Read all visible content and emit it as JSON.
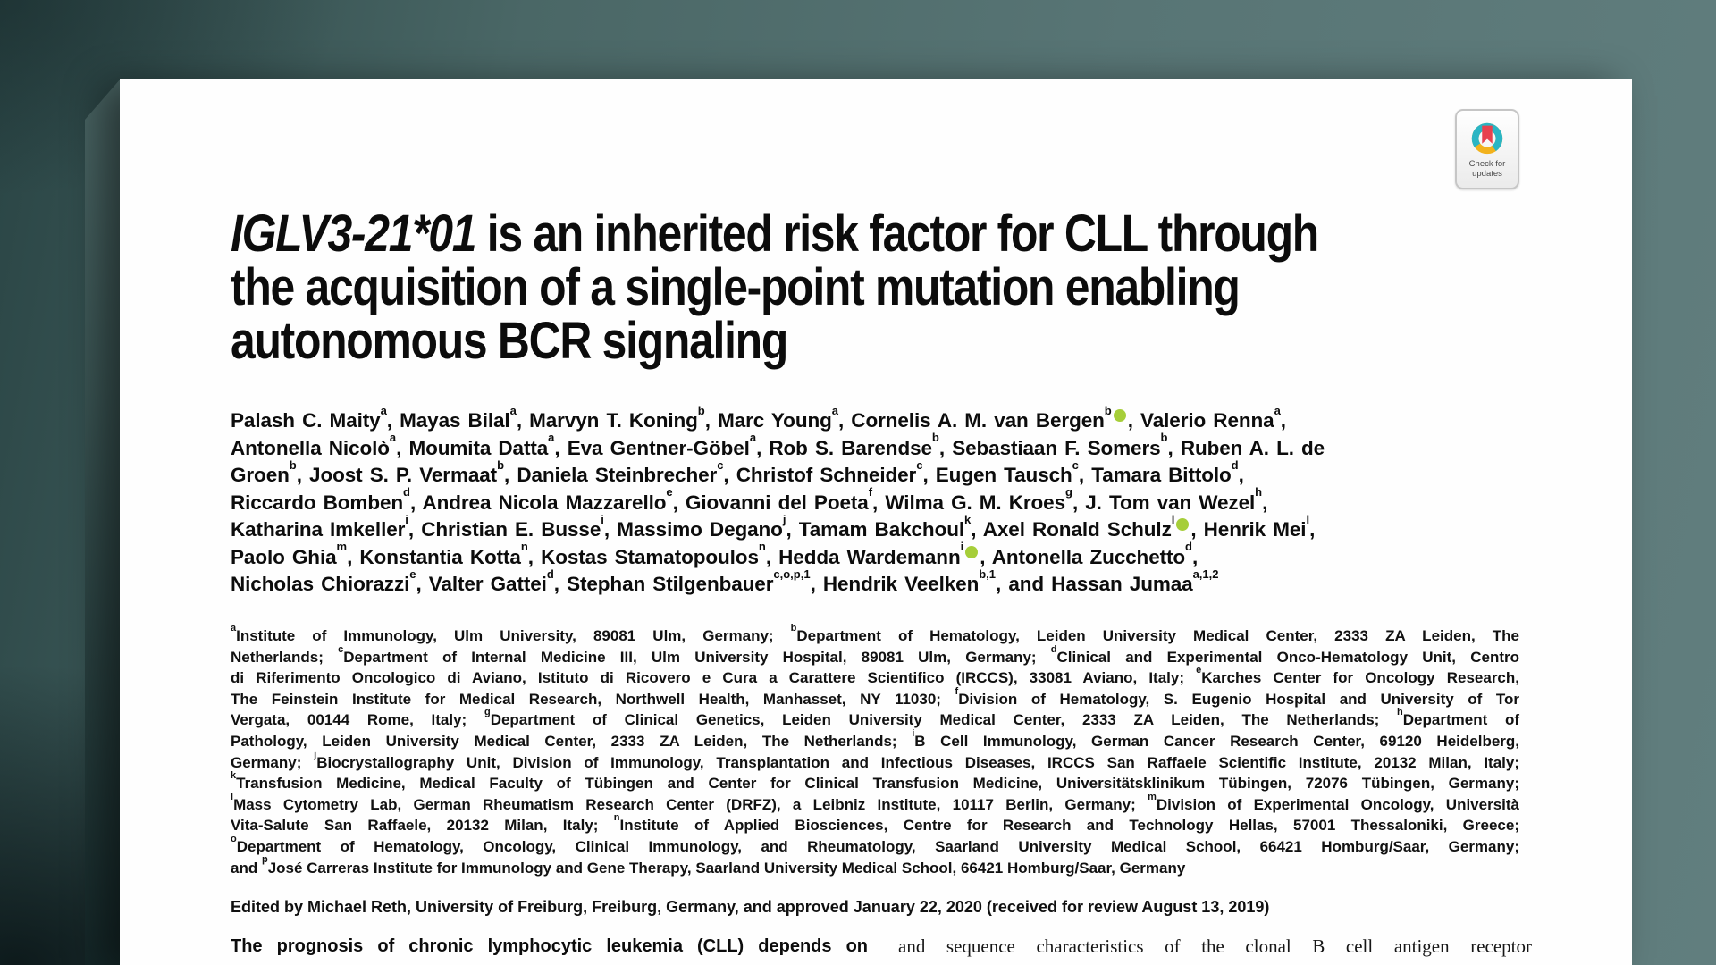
{
  "colors": {
    "bg_teal_dark": "#2a4545",
    "bg_teal_light": "#617e7e",
    "orcid_green": "#a6ce39",
    "badge_ring_teal": "#2ab5c4",
    "badge_ring_yellow": "#f2b21d",
    "badge_bookmark_red": "#e8414e"
  },
  "badge": {
    "label_line1": "Check for",
    "label_line2": "updates"
  },
  "title": {
    "italic_segment": "IGLV3-21*01",
    "line1_rest": " is an inherited risk factor for CLL through",
    "line2": "the acquisition of a single-point mutation enabling",
    "line3": "autonomous BCR signaling"
  },
  "author_lines": [
    [
      {
        "t": "Palash C. Maity",
        "s": "a",
        "sep": ", "
      },
      {
        "t": "Mayas Bilal",
        "s": "a",
        "sep": ", "
      },
      {
        "t": "Marvyn T. Koning",
        "s": "b",
        "sep": ", "
      },
      {
        "t": "Marc Young",
        "s": "a",
        "sep": ", "
      },
      {
        "t": "Cornelis A. M. van Bergen",
        "s": "b",
        "orcid": true,
        "sep": ", "
      },
      {
        "t": "Valerio Renna",
        "s": "a",
        "sep": ","
      }
    ],
    [
      {
        "t": "Antonella Nicolò",
        "s": "a",
        "sep": ", "
      },
      {
        "t": "Moumita Datta",
        "s": "a",
        "sep": ", "
      },
      {
        "t": "Eva Gentner-Göbel",
        "s": "a",
        "sep": ", "
      },
      {
        "t": "Rob S. Barendse",
        "s": "b",
        "sep": ", "
      },
      {
        "t": "Sebastiaan F. Somers",
        "s": "b",
        "sep": ", "
      },
      {
        "t": "Ruben A. L. de",
        "sep": ""
      }
    ],
    [
      {
        "t": "Groen",
        "s": "b",
        "sep": ", "
      },
      {
        "t": "Joost S. P. Vermaat",
        "s": "b",
        "sep": ", "
      },
      {
        "t": "Daniela Steinbrecher",
        "s": "c",
        "sep": ", "
      },
      {
        "t": "Christof Schneider",
        "s": "c",
        "sep": ", "
      },
      {
        "t": "Eugen Tausch",
        "s": "c",
        "sep": ", "
      },
      {
        "t": "Tamara Bittolo",
        "s": "d",
        "sep": ","
      }
    ],
    [
      {
        "t": "Riccardo Bomben",
        "s": "d",
        "sep": ", "
      },
      {
        "t": "Andrea Nicola Mazzarello",
        "s": "e",
        "sep": ", "
      },
      {
        "t": "Giovanni del Poeta",
        "s": "f",
        "sep": ", "
      },
      {
        "t": "Wilma G. M. Kroes",
        "s": "g",
        "sep": ", "
      },
      {
        "t": "J. Tom van Wezel",
        "s": "h",
        "sep": ","
      }
    ],
    [
      {
        "t": "Katharina Imkeller",
        "s": "i",
        "sep": ", "
      },
      {
        "t": "Christian E. Busse",
        "s": "i",
        "sep": ", "
      },
      {
        "t": "Massimo Degano",
        "s": "j",
        "sep": ", "
      },
      {
        "t": "Tamam Bakchoul",
        "s": "k",
        "sep": ", "
      },
      {
        "t": "Axel Ronald Schulz",
        "s": "l",
        "orcid": true,
        "sep": ", "
      },
      {
        "t": "Henrik Mei",
        "s": "l",
        "sep": ","
      }
    ],
    [
      {
        "t": "Paolo Ghia",
        "s": "m",
        "sep": ", "
      },
      {
        "t": "Konstantia Kotta",
        "s": "n",
        "sep": ", "
      },
      {
        "t": "Kostas Stamatopoulos",
        "s": "n",
        "sep": ", "
      },
      {
        "t": "Hedda Wardemann",
        "s": "i",
        "orcid": true,
        "sep": ", "
      },
      {
        "t": "Antonella Zucchetto",
        "s": "d",
        "sep": ","
      }
    ],
    [
      {
        "t": "Nicholas Chiorazzi",
        "s": "e",
        "sep": ", "
      },
      {
        "t": "Valter Gattei",
        "s": "d",
        "sep": ", "
      },
      {
        "t": "Stephan Stilgenbauer",
        "s": "c,o,p,1",
        "sep": ", "
      },
      {
        "t": "Hendrik Veelken",
        "s": "b,1",
        "sep": ", "
      },
      {
        "t": "and Hassan Jumaa",
        "s": "a,1,2",
        "sep": ""
      }
    ]
  ],
  "affiliation_lines": [
    [
      {
        "s": "a"
      },
      {
        "t": "Institute of Immunology, Ulm University, 89081 Ulm, Germany; "
      },
      {
        "s": "b"
      },
      {
        "t": "Department of Hematology, Leiden University Medical Center, 2333 ZA Leiden, The"
      }
    ],
    [
      {
        "t": "Netherlands; "
      },
      {
        "s": "c"
      },
      {
        "t": "Department of Internal Medicine III, Ulm University Hospital, 89081 Ulm, Germany; "
      },
      {
        "s": "d"
      },
      {
        "t": "Clinical and Experimental Onco-Hematology Unit, Centro"
      }
    ],
    [
      {
        "t": "di Riferimento Oncologico di Aviano, Istituto di Ricovero e Cura a Carattere Scientifico (IRCCS), 33081 Aviano, Italy; "
      },
      {
        "s": "e"
      },
      {
        "t": "Karches Center for Oncology Research,"
      }
    ],
    [
      {
        "t": "The Feinstein Institute for Medical Research, Northwell Health, Manhasset, NY 11030; "
      },
      {
        "s": "f"
      },
      {
        "t": "Division of Hematology, S. Eugenio Hospital and University of Tor"
      }
    ],
    [
      {
        "t": "Vergata, 00144 Rome, Italy; "
      },
      {
        "s": "g"
      },
      {
        "t": "Department of Clinical Genetics, Leiden University Medical Center, 2333 ZA Leiden, The Netherlands; "
      },
      {
        "s": "h"
      },
      {
        "t": "Department of"
      }
    ],
    [
      {
        "t": "Pathology, Leiden University Medical Center, 2333 ZA Leiden, The Netherlands; "
      },
      {
        "s": "i"
      },
      {
        "t": "B Cell Immunology, German Cancer Research Center, 69120 Heidelberg,"
      }
    ],
    [
      {
        "t": "Germany; "
      },
      {
        "s": "j"
      },
      {
        "t": "Biocrystallography Unit, Division of Immunology, Transplantation and Infectious Diseases, IRCCS San Raffaele Scientific Institute, 20132 Milan, Italy;"
      }
    ],
    [
      {
        "s": "k"
      },
      {
        "t": "Transfusion Medicine, Medical Faculty of Tübingen and Center for Clinical Transfusion Medicine, Universitätsklinikum Tübingen, 72076 Tübingen, Germany;"
      }
    ],
    [
      {
        "s": "l"
      },
      {
        "t": "Mass Cytometry Lab, German Rheumatism Research Center (DRFZ), a Leibniz Institute, 10117 Berlin, Germany; "
      },
      {
        "s": "m"
      },
      {
        "t": "Division of Experimental Oncology, Università"
      }
    ],
    [
      {
        "t": "Vita-Salute San Raffaele, 20132 Milan, Italy; "
      },
      {
        "s": "n"
      },
      {
        "t": "Institute of Applied Biosciences, Centre for Research and Technology Hellas, 57001 Thessaloniki, Greece;"
      }
    ],
    [
      {
        "s": "o"
      },
      {
        "t": "Department of Hematology, Oncology, Clinical Immunology, and Rheumatology, Saarland University Medical School, 66421 Homburg/Saar, Germany;"
      }
    ],
    [
      {
        "t": "and "
      },
      {
        "s": "p"
      },
      {
        "t": "José Carreras Institute for Immunology and Gene Therapy, Saarland University Medical School, 66421 Homburg/Saar, Germany"
      }
    ]
  ],
  "edited_line": "Edited by Michael Reth, University of Freiburg, Freiburg, Germany, and approved January 22, 2020 (received for review August 13, 2019)",
  "columns": {
    "left_bold_text": "The prognosis of chronic lymphocytic leukemia (CLL) depends on",
    "right_serif_text": "and sequence characteristics of the clonal B cell antigen receptor"
  }
}
